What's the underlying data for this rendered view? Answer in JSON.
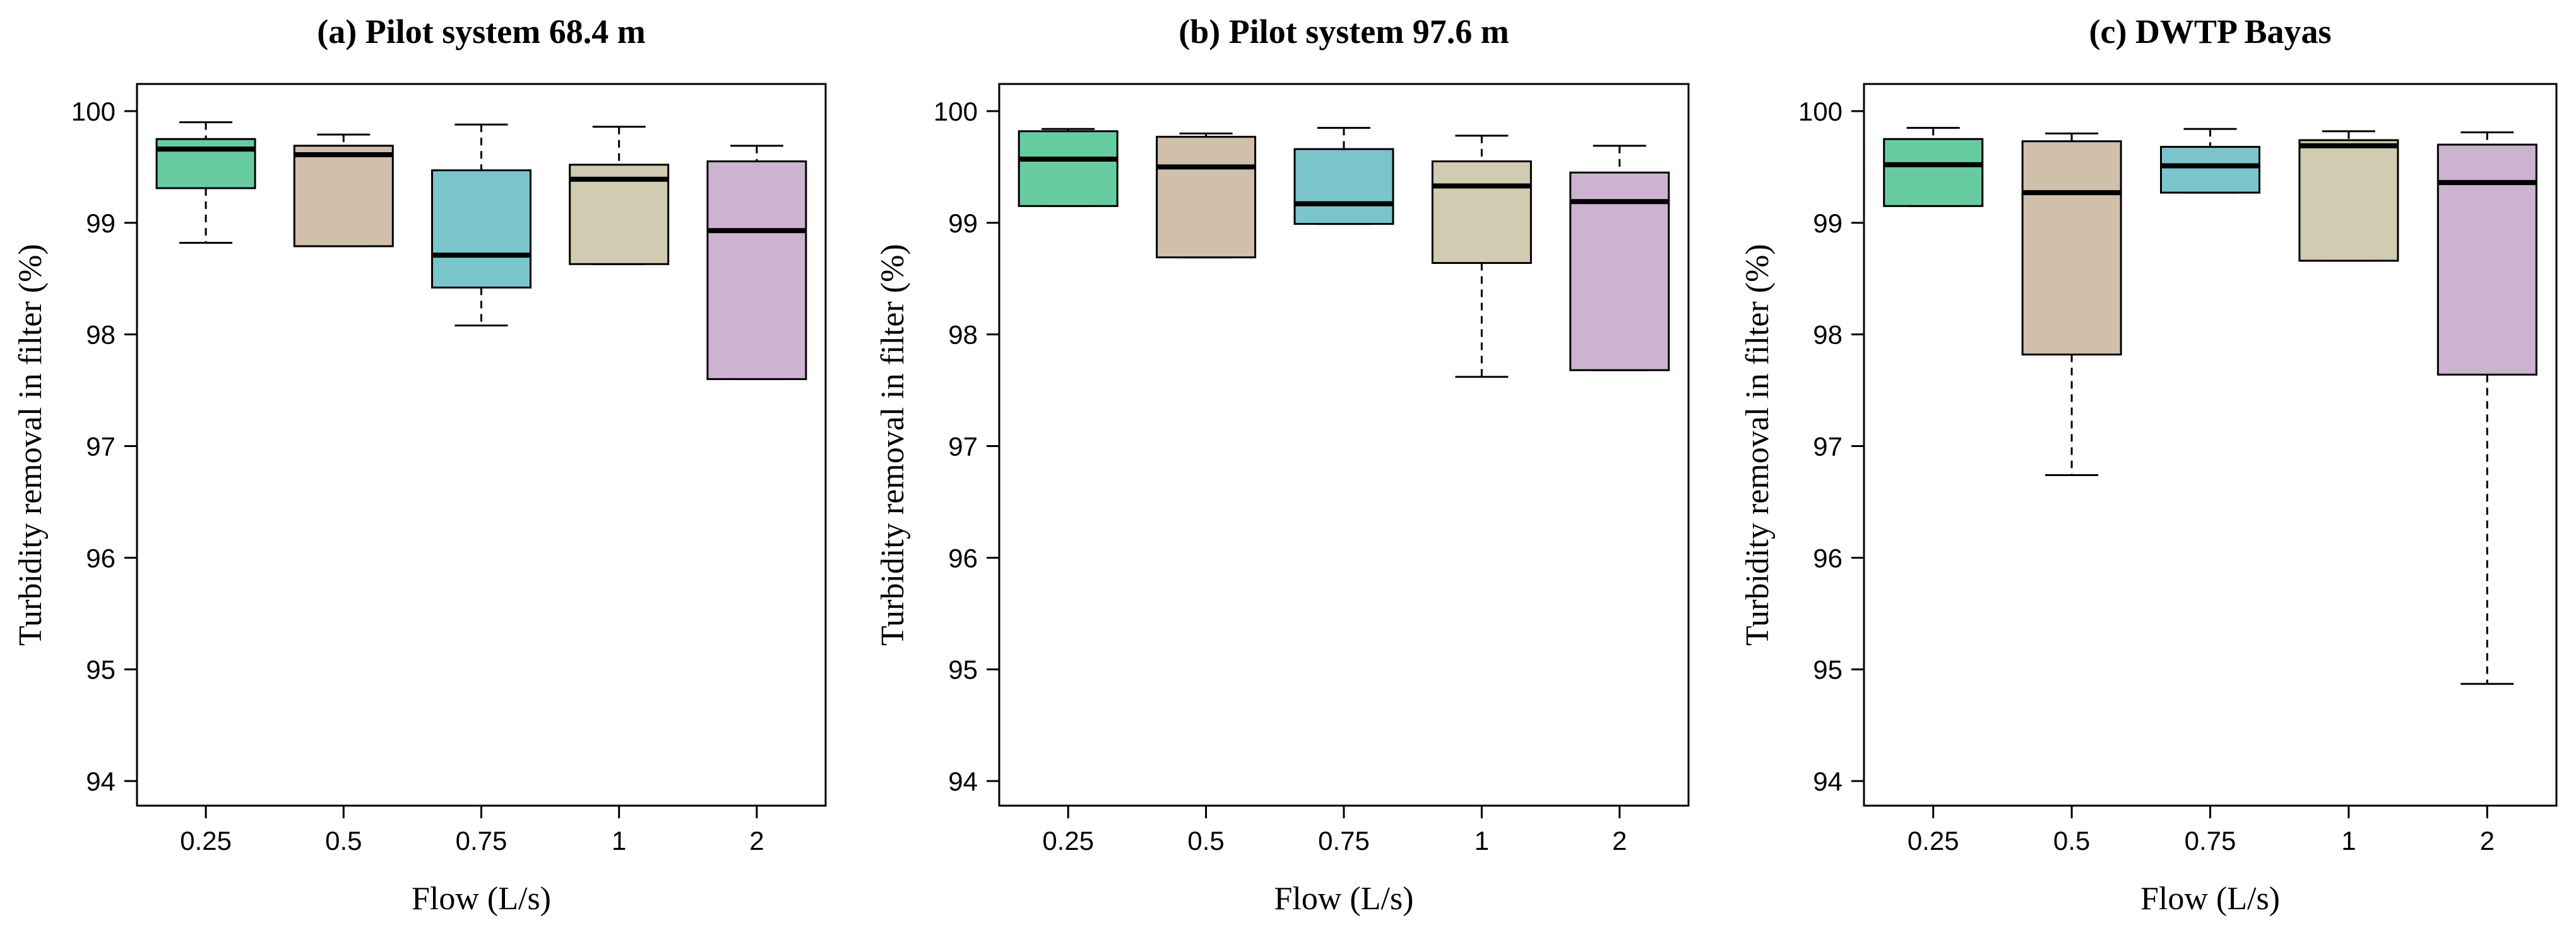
{
  "chart_data": [
    {
      "type": "box",
      "title": "(a) Pilot system 68.4 m",
      "xlabel": "Flow (L/s)",
      "ylabel": "Turbidity removal in filter (%)",
      "ylim": [
        94,
        100
      ],
      "yticks": [
        "94",
        "95",
        "96",
        "97",
        "98",
        "99",
        "100"
      ],
      "categories": [
        "0.25",
        "0.5",
        "0.75",
        "1",
        "2"
      ],
      "boxes": [
        {
          "min": 98.82,
          "q1": 99.31,
          "median": 99.66,
          "q3": 99.75,
          "max": 99.9
        },
        {
          "min": 98.79,
          "q1": 98.79,
          "median": 99.61,
          "q3": 99.69,
          "max": 99.79
        },
        {
          "min": 98.08,
          "q1": 98.42,
          "median": 98.71,
          "q3": 99.47,
          "max": 99.88
        },
        {
          "min": 98.63,
          "q1": 98.63,
          "median": 99.39,
          "q3": 99.52,
          "max": 99.86
        },
        {
          "min": 97.6,
          "q1": 97.6,
          "median": 98.93,
          "q3": 99.55,
          "max": 99.69
        }
      ]
    },
    {
      "type": "box",
      "title": "(b) Pilot system 97.6 m",
      "xlabel": "Flow (L/s)",
      "ylabel": "Turbidity removal in filter (%)",
      "ylim": [
        94,
        100
      ],
      "yticks": [
        "94",
        "95",
        "96",
        "97",
        "98",
        "99",
        "100"
      ],
      "categories": [
        "0.25",
        "0.5",
        "0.75",
        "1",
        "2"
      ],
      "boxes": [
        {
          "min": 99.15,
          "q1": 99.15,
          "median": 99.57,
          "q3": 99.82,
          "max": 99.84
        },
        {
          "min": 98.69,
          "q1": 98.69,
          "median": 99.5,
          "q3": 99.77,
          "max": 99.8
        },
        {
          "min": 98.99,
          "q1": 98.99,
          "median": 99.17,
          "q3": 99.66,
          "max": 99.85
        },
        {
          "min": 97.62,
          "q1": 98.64,
          "median": 99.33,
          "q3": 99.55,
          "max": 99.78
        },
        {
          "min": 97.68,
          "q1": 97.68,
          "median": 99.19,
          "q3": 99.45,
          "max": 99.69
        }
      ]
    },
    {
      "type": "box",
      "title": "(c) DWTP Bayas",
      "xlabel": "Flow (L/s)",
      "ylabel": "Turbidity removal in filter (%)",
      "ylim": [
        94,
        100
      ],
      "yticks": [
        "94",
        "95",
        "96",
        "97",
        "98",
        "99",
        "100"
      ],
      "categories": [
        "0.25",
        "0.5",
        "0.75",
        "1",
        "2"
      ],
      "boxes": [
        {
          "min": 99.15,
          "q1": 99.15,
          "median": 99.52,
          "q3": 99.75,
          "max": 99.85
        },
        {
          "min": 96.74,
          "q1": 97.82,
          "median": 99.27,
          "q3": 99.73,
          "max": 99.8
        },
        {
          "min": 99.27,
          "q1": 99.27,
          "median": 99.51,
          "q3": 99.68,
          "max": 99.84
        },
        {
          "min": 98.66,
          "q1": 98.66,
          "median": 99.69,
          "q3": 99.74,
          "max": 99.82
        },
        {
          "min": 94.87,
          "q1": 97.64,
          "median": 99.36,
          "q3": 99.7,
          "max": 99.81
        }
      ]
    }
  ],
  "colors": [
    "#66cc9f",
    "#cfbfab",
    "#7ac5cc",
    "#d0cbb1",
    "#ccb3cf"
  ]
}
